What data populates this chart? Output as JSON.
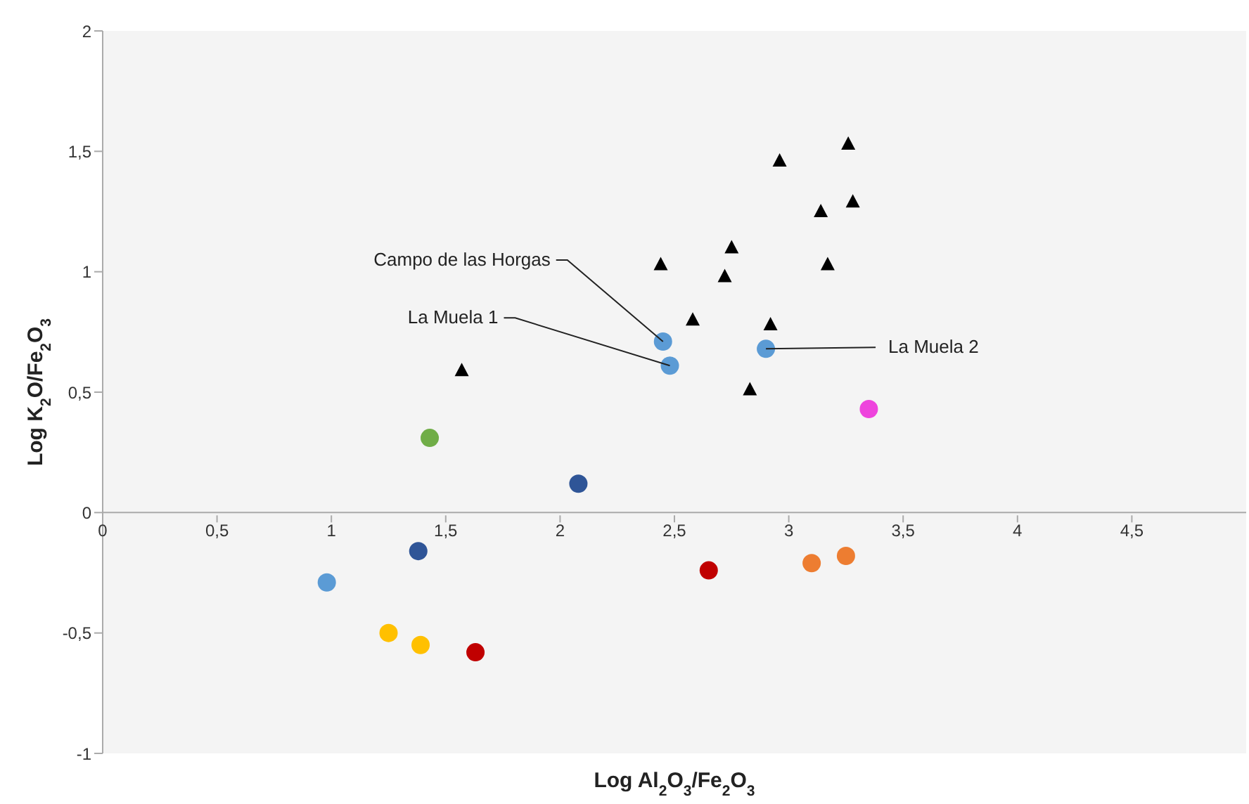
{
  "chart_data": {
    "type": "scatter",
    "xlabel": "Log Al$_{2}$O$_{3}$/Fe$_{2}$O$_{3}$",
    "ylabel": "Log K$_{2}$O/Fe$_{2}$O$_{3}$",
    "xlim": [
      0,
      5
    ],
    "ylim": [
      -1,
      2
    ],
    "xticks": [
      0,
      {
        "value": 0.5,
        "label": "0,5"
      },
      1,
      {
        "value": 1.5,
        "label": "1,5"
      },
      2,
      {
        "value": 2.5,
        "label": "2,5"
      },
      3,
      {
        "value": 3.5,
        "label": "3,5"
      },
      4,
      {
        "value": 4.5,
        "label": "4,5"
      }
    ],
    "yticks": [
      -1,
      {
        "value": -0.5,
        "label": "-0,5"
      },
      0,
      {
        "value": 0.5,
        "label": "0,5"
      },
      1,
      {
        "value": 1.5,
        "label": "1,5"
      },
      2
    ],
    "series": [
      {
        "color": "#000000",
        "marker": "triangle",
        "x": [
          3.26,
          2.96,
          3.28,
          3.14,
          2.75,
          2.44,
          3.17,
          2.72,
          2.58,
          2.92,
          1.57,
          2.83
        ],
        "values": [
          1.53,
          1.46,
          1.29,
          1.25,
          1.1,
          1.03,
          1.03,
          0.98,
          0.8,
          0.78,
          0.59,
          0.51
        ]
      },
      {
        "color": "#5b9bd5",
        "marker": "circle",
        "x": [
          2.45,
          2.48,
          2.9,
          0.98
        ],
        "values": [
          0.71,
          0.61,
          0.68,
          -0.29
        ]
      },
      {
        "color": "#70ad47",
        "marker": "circle",
        "x": [
          1.43
        ],
        "values": [
          0.31
        ]
      },
      {
        "color": "#2f5597",
        "marker": "circle",
        "x": [
          2.08,
          1.38
        ],
        "values": [
          0.12,
          -0.16
        ]
      },
      {
        "color": "#ffc000",
        "marker": "circle",
        "x": [
          1.25,
          1.39
        ],
        "values": [
          -0.5,
          -0.55
        ]
      },
      {
        "color": "#c00000",
        "marker": "circle",
        "x": [
          1.63,
          2.65
        ],
        "values": [
          -0.58,
          -0.24
        ]
      },
      {
        "color": "#ed7d31",
        "marker": "circle",
        "x": [
          3.1,
          3.25
        ],
        "values": [
          -0.21,
          -0.18
        ]
      },
      {
        "color": "#ee44dd",
        "marker": "circle",
        "x": [
          3.35
        ],
        "values": [
          0.43
        ]
      }
    ],
    "annotations": [
      {
        "text": "Campo de las Horgas",
        "x": 2.45,
        "y": 0.71
      },
      {
        "text": "La Muela 1",
        "x": 2.48,
        "y": 0.61
      },
      {
        "text": "La Muela 2",
        "x": 2.9,
        "y": 0.68
      }
    ]
  }
}
